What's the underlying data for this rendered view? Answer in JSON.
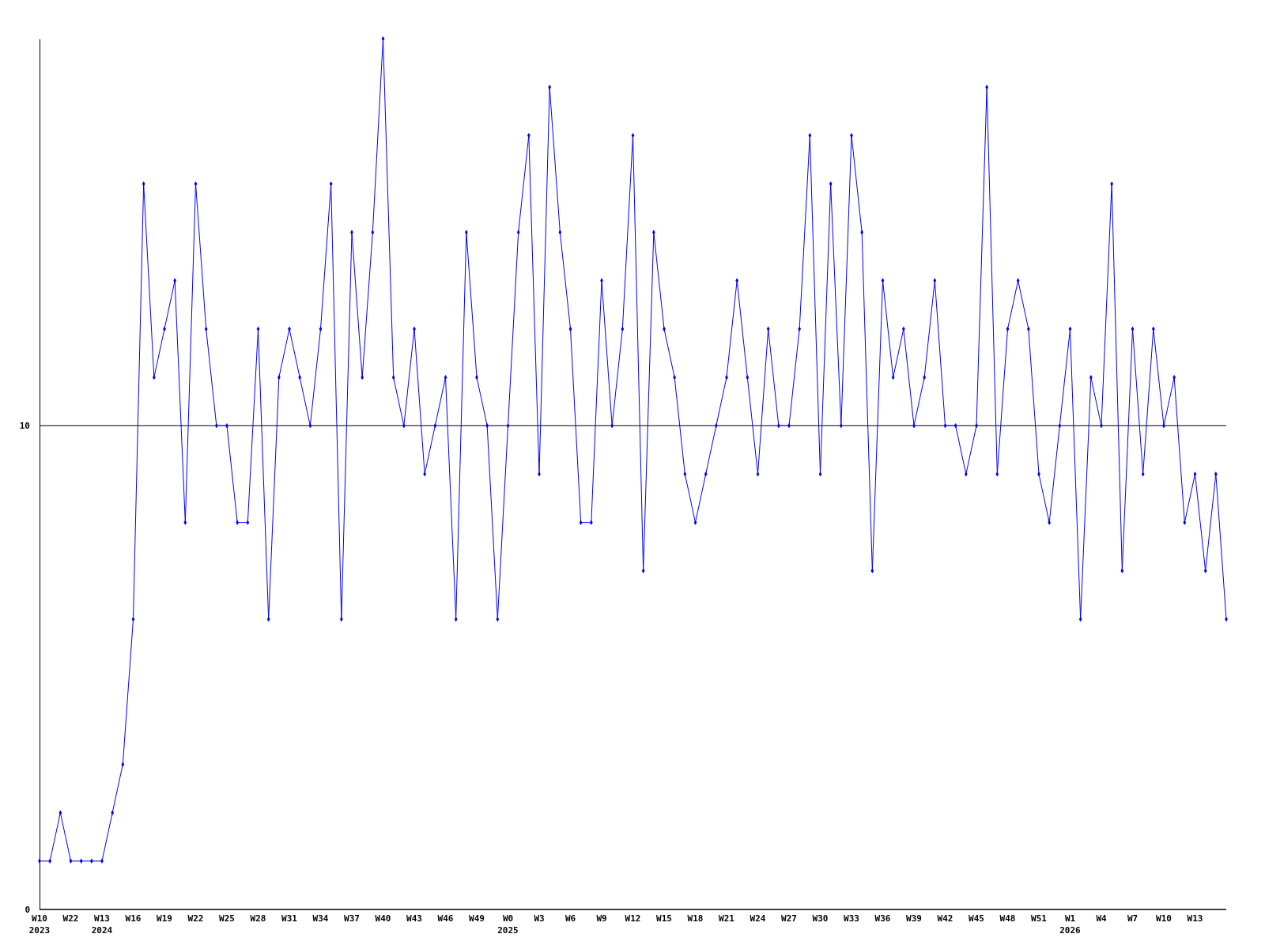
{
  "chart_data": {
    "type": "line",
    "categories": [
      "W10\n2023",
      null,
      null,
      "W22",
      null,
      null,
      "W13\n2024",
      null,
      null,
      "W16",
      null,
      null,
      "W19",
      null,
      null,
      "W22",
      null,
      null,
      "W25",
      null,
      null,
      "W28",
      null,
      null,
      "W31",
      null,
      null,
      "W34",
      null,
      null,
      "W37",
      null,
      null,
      "W40",
      null,
      null,
      "W43",
      null,
      null,
      "W46",
      null,
      null,
      "W49",
      null,
      null,
      "W0\n2025",
      null,
      null,
      "W3",
      null,
      null,
      "W6",
      null,
      null,
      "W9",
      null,
      null,
      "W12",
      null,
      null,
      "W15",
      null,
      null,
      "W18",
      null,
      null,
      "W21",
      null,
      null,
      "W24",
      null,
      null,
      "W27",
      null,
      null,
      "W30",
      null,
      null,
      "W33",
      null,
      null,
      "W36",
      null,
      null,
      "W39",
      null,
      null,
      "W42",
      null,
      null,
      "W45",
      null,
      null,
      "W48",
      null,
      null,
      "W51",
      null,
      null,
      "W1\n2026",
      null,
      null,
      "W4",
      null,
      null,
      "W7",
      null,
      null,
      "W10",
      null,
      null,
      "W13",
      null,
      null,
      null
    ],
    "series": [
      {
        "color": "#0000ff",
        "values": [
          1,
          1,
          2,
          1,
          1,
          1,
          1,
          2,
          3,
          6,
          15,
          11,
          12,
          13,
          8,
          15,
          12,
          10,
          10,
          8,
          8,
          12,
          6,
          11,
          12,
          11,
          10,
          12,
          15,
          6,
          14,
          11,
          14,
          18,
          11,
          10,
          12,
          9,
          10,
          11,
          6,
          14,
          11,
          10,
          6,
          10,
          14,
          16,
          9,
          17,
          14,
          12,
          8,
          8,
          13,
          10,
          12,
          16,
          7,
          14,
          12,
          11,
          9,
          8,
          9,
          10,
          11,
          13,
          11,
          9,
          12,
          10,
          10,
          12,
          16,
          9,
          15,
          10,
          16,
          14,
          7,
          13,
          11,
          12,
          10,
          11,
          13,
          10,
          10,
          9,
          10,
          17,
          9,
          12,
          13,
          12,
          9,
          8,
          10,
          12,
          6,
          11,
          10,
          15,
          7,
          12,
          9,
          12,
          10,
          11,
          8,
          9,
          7,
          9,
          6
        ]
      }
    ],
    "ylim": [
      0,
      18
    ],
    "yticks": [
      0,
      10
    ],
    "grid": "y",
    "marker": "diamond",
    "line_style": "solid"
  }
}
